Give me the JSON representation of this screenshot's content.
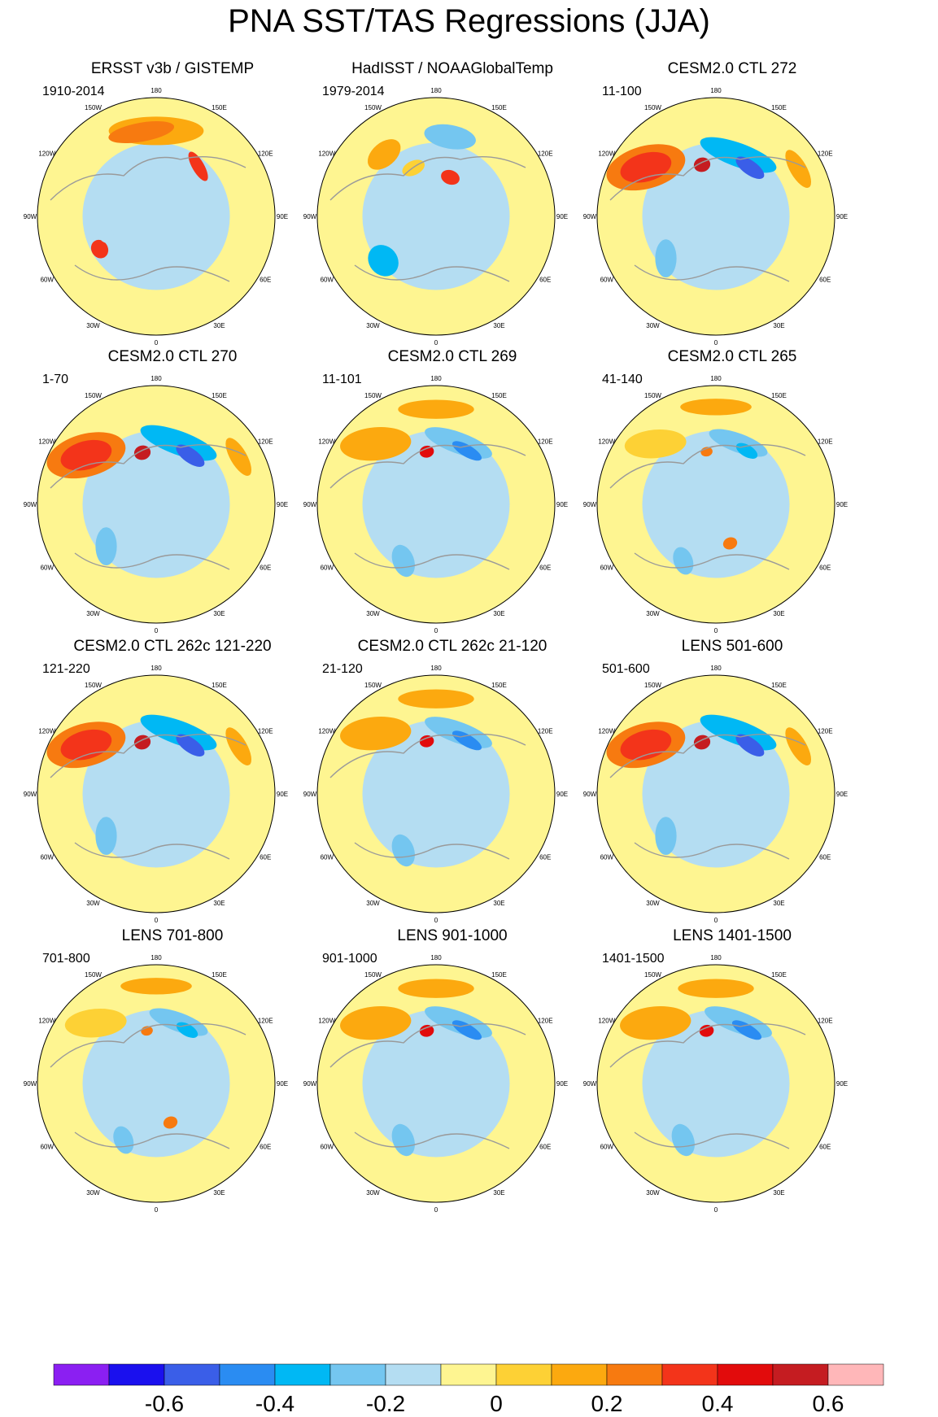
{
  "title": "PNA SST/TAS Regressions (JJA)",
  "colors": {
    "levels": [
      "#8b1ff2",
      "#1a10ee",
      "#3a5ee8",
      "#2a8cf2",
      "#00b8f4",
      "#74c6f0",
      "#b4ddf2",
      "#fef591",
      "#fdd135",
      "#fca90f",
      "#f77a10",
      "#f3341a",
      "#e20b0c",
      "#c51c21",
      "#ffb7b9"
    ]
  },
  "chart_data": {
    "type": "heatmap",
    "projection": "north polar stereographic",
    "variable": "SST/TAS regression on PNA index",
    "season": "JJA",
    "panels": [
      {
        "title": "ERSST v3b / GISTEMP",
        "period": "1910-2014",
        "pattern": "obs1"
      },
      {
        "title": "HadISST / NOAAGlobalTemp",
        "period": "1979-2014",
        "pattern": "obs2"
      },
      {
        "title": "CESM2.0 CTL 272",
        "period": "11-100",
        "pattern": "model-strong"
      },
      {
        "title": "CESM2.0 CTL 270",
        "period": "1-70",
        "pattern": "model-strong"
      },
      {
        "title": "CESM2.0 CTL 269",
        "period": "11-101",
        "pattern": "model"
      },
      {
        "title": "CESM2.0 CTL 265",
        "period": "41-140",
        "pattern": "model-weak"
      },
      {
        "title": "CESM2.0 CTL 262c 121-220",
        "period": "121-220",
        "pattern": "model-strong"
      },
      {
        "title": "CESM2.0 CTL 262c 21-120",
        "period": "21-120",
        "pattern": "model"
      },
      {
        "title": "LENS 501-600",
        "period": "501-600",
        "pattern": "model-strong"
      },
      {
        "title": "LENS 701-800",
        "period": "701-800",
        "pattern": "model-weak"
      },
      {
        "title": "LENS 901-1000",
        "period": "901-1000",
        "pattern": "model"
      },
      {
        "title": "LENS 1401-1500",
        "period": "1401-1500",
        "pattern": "model"
      }
    ],
    "longitude_labels": [
      "180",
      "150E",
      "120E",
      "90E",
      "60E",
      "30E",
      "0",
      "30W",
      "60W",
      "90W",
      "120W",
      "150W"
    ],
    "colorbar": {
      "levels": [
        -0.7,
        -0.6,
        -0.5,
        -0.4,
        -0.3,
        -0.2,
        -0.1,
        0,
        0.1,
        0.2,
        0.3,
        0.4,
        0.5,
        0.6,
        0.7
      ],
      "tick_labels": [
        "-0.6",
        "-0.4",
        "-0.2",
        "0",
        "0.2",
        "0.4",
        "0.6"
      ]
    }
  }
}
